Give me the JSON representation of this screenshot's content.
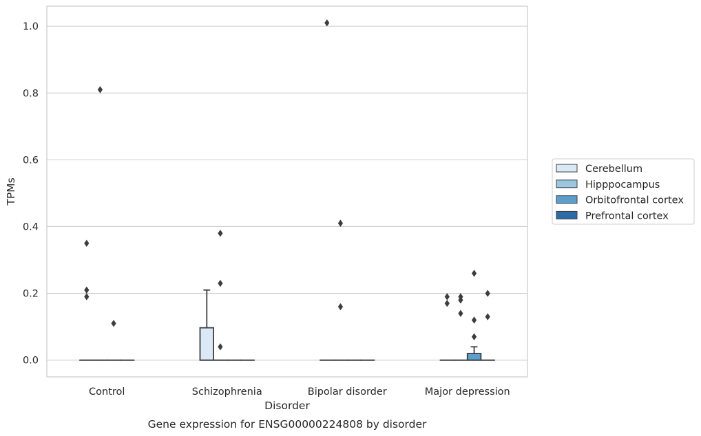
{
  "chart_data": {
    "type": "box",
    "title": "",
    "caption": "Gene expression for ENSG00000224808 by disorder",
    "xlabel": "Disorder",
    "ylabel": "TPMs",
    "ylim": [
      -0.05,
      1.06
    ],
    "yticks": [
      0.0,
      0.2,
      0.4,
      0.6,
      0.8,
      1.0
    ],
    "ytick_labels": [
      "0.0",
      "0.2",
      "0.4",
      "0.6",
      "0.8",
      "1.0"
    ],
    "grid": "horizontal",
    "legend_position": "right",
    "categories": [
      "Control",
      "Schizophrenia",
      "Bipolar disorder",
      "Major depression"
    ],
    "series": [
      {
        "name": "Cerebellum",
        "color": "#dbe9f6",
        "boxes": [
          {
            "q1": 0,
            "median": 0,
            "q3": 0,
            "whisker_low": 0,
            "whisker_high": 0,
            "outliers": [
              0.35,
              0.21,
              0.19
            ]
          },
          {
            "q1": 0,
            "median": 0,
            "q3": 0.097,
            "whisker_low": 0,
            "whisker_high": 0.21,
            "outliers": []
          },
          {
            "q1": 0,
            "median": 0,
            "q3": 0,
            "whisker_low": 0,
            "whisker_high": 0,
            "outliers": [
              1.01
            ]
          },
          {
            "q1": 0,
            "median": 0,
            "q3": 0,
            "whisker_low": 0,
            "whisker_high": 0,
            "outliers": [
              0.19,
              0.17
            ]
          }
        ]
      },
      {
        "name": "Hipppocampus",
        "color": "#9ac8e0",
        "boxes": [
          {
            "q1": 0,
            "median": 0,
            "q3": 0,
            "whisker_low": 0,
            "whisker_high": 0,
            "outliers": [
              0.81
            ]
          },
          {
            "q1": 0,
            "median": 0,
            "q3": 0,
            "whisker_low": 0,
            "whisker_high": 0,
            "outliers": [
              0.38,
              0.23,
              0.04
            ]
          },
          {
            "q1": 0,
            "median": 0,
            "q3": 0,
            "whisker_low": 0,
            "whisker_high": 0,
            "outliers": [
              0.41,
              0.16
            ]
          },
          {
            "q1": 0,
            "median": 0,
            "q3": 0,
            "whisker_low": 0,
            "whisker_high": 0,
            "outliers": [
              0.19,
              0.18,
              0.14
            ]
          }
        ]
      },
      {
        "name": "Orbitofrontal cortex",
        "color": "#5a9fcd",
        "boxes": [
          {
            "q1": 0,
            "median": 0,
            "q3": 0,
            "whisker_low": 0,
            "whisker_high": 0,
            "outliers": [
              0.11
            ]
          },
          {
            "q1": 0,
            "median": 0,
            "q3": 0,
            "whisker_low": 0,
            "whisker_high": 0,
            "outliers": []
          },
          {
            "q1": 0,
            "median": 0,
            "q3": 0,
            "whisker_low": 0,
            "whisker_high": 0,
            "outliers": []
          },
          {
            "q1": 0,
            "median": 0,
            "q3": 0.02,
            "whisker_low": 0,
            "whisker_high": 0.04,
            "outliers": [
              0.26,
              0.12,
              0.07
            ]
          }
        ]
      },
      {
        "name": "Prefrontal cortex",
        "color": "#2b6ca8",
        "boxes": [
          {
            "q1": 0,
            "median": 0,
            "q3": 0,
            "whisker_low": 0,
            "whisker_high": 0,
            "outliers": []
          },
          {
            "q1": 0,
            "median": 0,
            "q3": 0,
            "whisker_low": 0,
            "whisker_high": 0,
            "outliers": []
          },
          {
            "q1": 0,
            "median": 0,
            "q3": 0,
            "whisker_low": 0,
            "whisker_high": 0,
            "outliers": []
          },
          {
            "q1": 0,
            "median": 0,
            "q3": 0,
            "whisker_low": 0,
            "whisker_high": 0,
            "outliers": [
              0.2,
              0.13
            ]
          }
        ]
      }
    ]
  }
}
